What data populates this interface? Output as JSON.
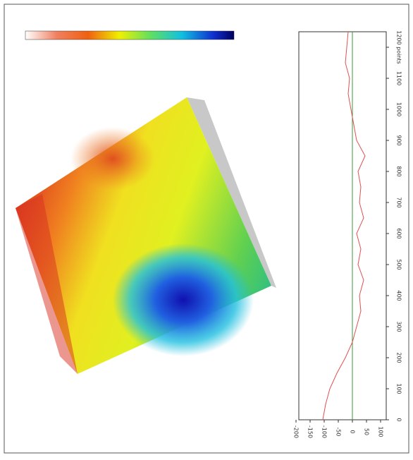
{
  "chart_data": {
    "type": "line",
    "x": [
      0,
      50,
      100,
      150,
      200,
      250,
      300,
      350,
      400,
      450,
      500,
      550,
      600,
      650,
      700,
      750,
      800,
      850,
      900,
      950,
      1000,
      1050,
      1100,
      1150,
      1200,
      1250
    ],
    "series": [
      {
        "color": "#e05050",
        "values": [
          -105,
          -95,
          -80,
          -55,
          -25,
          0,
          15,
          30,
          25,
          40,
          20,
          30,
          15,
          40,
          25,
          30,
          20,
          45,
          15,
          5,
          -5,
          -15,
          -10,
          -25,
          -20,
          -15
        ]
      }
    ],
    "xlim": [
      0,
      1250
    ],
    "xticks": [
      0,
      100,
      200,
      300,
      400,
      500,
      600,
      700,
      800,
      900,
      1000,
      1100,
      {
        "value": 1200,
        "label": "1200 points"
      }
    ],
    "ylim": [
      -190,
      120
    ],
    "yticks": [
      -200,
      -150,
      -100,
      -50,
      0,
      50,
      100
    ],
    "zero_line_color": "#3a9a3a"
  }
}
